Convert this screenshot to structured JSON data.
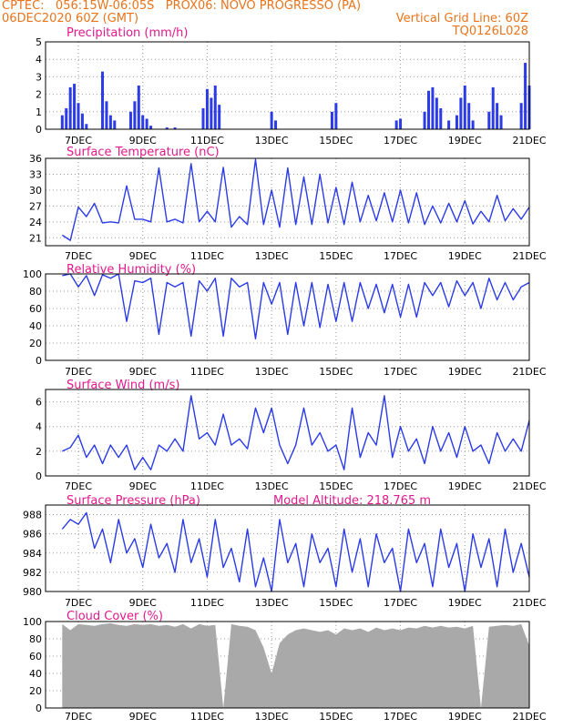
{
  "header": {
    "line1_left": "CPTEC:   056:15W-06:05S   PROX06: NOVO PROGRESSO (PA)",
    "line2_left": "06DEC2020 60Z (GMT)",
    "line2_right": "Vertical Grid Line: 60Z",
    "line3_right": "TQ0126L028"
  },
  "colors": {
    "header_text": "#e8741c",
    "title_text": "#e0198c",
    "series_line": "#2b3be8",
    "wind_arrow": "#000000",
    "cloud_fill": "#a9a9a9",
    "grid": "#9a9a9a"
  },
  "x_axis": {
    "start": "06DEC2020 12Z",
    "end": "21DEC2020 00Z",
    "ticks": [
      "7DEC",
      "9DEC",
      "11DEC",
      "13DEC",
      "15DEC",
      "17DEC",
      "19DEC",
      "21DEC"
    ]
  },
  "chart_data": [
    {
      "type": "bar",
      "title": "Precipitation (mm/h)",
      "ylim": [
        0,
        5
      ],
      "yticks": [
        "0",
        "1",
        "2",
        "3",
        "4",
        "5"
      ],
      "grid": true,
      "x": [
        "06DEC 12Z",
        "06DEC 15Z",
        "06DEC 18Z",
        "06DEC 21Z",
        "07DEC 00Z",
        "07DEC 03Z",
        "07DEC 06Z",
        "07DEC 18Z",
        "07DEC 21Z",
        "08DEC 00Z",
        "08DEC 03Z",
        "08DEC 15Z",
        "08DEC 18Z",
        "08DEC 21Z",
        "09DEC 00Z",
        "09DEC 03Z",
        "09DEC 06Z",
        "09DEC 18Z",
        "10DEC 00Z",
        "10DEC 21Z",
        "11DEC 00Z",
        "11DEC 03Z",
        "11DEC 06Z",
        "11DEC 09Z",
        "13DEC 00Z",
        "13DEC 03Z",
        "14DEC 21Z",
        "15DEC 00Z",
        "16DEC 21Z",
        "17DEC 00Z",
        "17DEC 18Z",
        "17DEC 21Z",
        "18DEC 00Z",
        "18DEC 03Z",
        "18DEC 06Z",
        "18DEC 12Z",
        "18DEC 18Z",
        "18DEC 21Z",
        "19DEC 00Z",
        "19DEC 03Z",
        "19DEC 06Z",
        "19DEC 18Z",
        "19DEC 21Z",
        "20DEC 00Z",
        "20DEC 03Z",
        "20DEC 18Z",
        "20DEC 21Z",
        "21DEC 00Z"
      ],
      "values": [
        0.8,
        1.2,
        2.4,
        2.6,
        1.5,
        0.9,
        0.3,
        3.3,
        1.6,
        0.8,
        0.5,
        1.0,
        1.6,
        2.5,
        0.8,
        0.6,
        0.2,
        0.1,
        0.1,
        1.2,
        2.3,
        1.8,
        2.5,
        1.4,
        1.0,
        0.5,
        1.0,
        1.5,
        0.5,
        0.6,
        1.0,
        2.2,
        2.4,
        1.8,
        1.2,
        0.5,
        0.8,
        1.8,
        2.5,
        1.5,
        0.5,
        1.0,
        2.4,
        1.5,
        0.8,
        1.5,
        3.8,
        2.5
      ]
    },
    {
      "type": "line",
      "title": "Surface Temperature (nC)",
      "ylim": [
        19.5,
        36
      ],
      "yticks": [
        "21",
        "24",
        "27",
        "30",
        "33",
        "36"
      ],
      "grid": true,
      "x": [
        "06DEC 12Z",
        "06DEC 18Z",
        "07DEC 00Z",
        "07DEC 06Z",
        "07DEC 12Z",
        "07DEC 18Z",
        "08DEC 00Z",
        "08DEC 06Z",
        "08DEC 12Z",
        "08DEC 18Z",
        "09DEC 00Z",
        "09DEC 06Z",
        "09DEC 12Z",
        "09DEC 18Z",
        "10DEC 00Z",
        "10DEC 06Z",
        "10DEC 12Z",
        "10DEC 18Z",
        "11DEC 00Z",
        "11DEC 06Z",
        "11DEC 12Z",
        "11DEC 18Z",
        "12DEC 00Z",
        "12DEC 06Z",
        "12DEC 12Z",
        "12DEC 18Z",
        "13DEC 00Z",
        "13DEC 06Z",
        "13DEC 12Z",
        "13DEC 18Z",
        "14DEC 00Z",
        "14DEC 06Z",
        "14DEC 12Z",
        "14DEC 18Z",
        "15DEC 00Z",
        "15DEC 06Z",
        "15DEC 12Z",
        "15DEC 18Z",
        "16DEC 00Z",
        "16DEC 06Z",
        "16DEC 12Z",
        "16DEC 18Z",
        "17DEC 00Z",
        "17DEC 06Z",
        "17DEC 12Z",
        "17DEC 18Z",
        "18DEC 00Z",
        "18DEC 06Z",
        "18DEC 12Z",
        "18DEC 18Z",
        "19DEC 00Z",
        "19DEC 06Z",
        "19DEC 12Z",
        "19DEC 18Z",
        "20DEC 00Z",
        "20DEC 06Z",
        "20DEC 12Z",
        "20DEC 18Z",
        "21DEC 00Z"
      ],
      "values": [
        21.5,
        20.5,
        26.8,
        25.0,
        27.5,
        23.8,
        24.0,
        23.8,
        30.8,
        24.5,
        24.5,
        24.0,
        34.2,
        24.0,
        24.5,
        23.8,
        35.0,
        24.0,
        26.0,
        24.0,
        34.3,
        23.0,
        25.0,
        23.5,
        35.8,
        23.5,
        30.0,
        23.0,
        34.2,
        23.5,
        32.5,
        23.5,
        33.0,
        23.8,
        30.5,
        23.5,
        31.5,
        24.0,
        29.0,
        24.2,
        29.5,
        24.0,
        30.0,
        23.8,
        29.5,
        23.5,
        27.0,
        23.8,
        27.5,
        24.0,
        28.0,
        23.6,
        26.0,
        24.0,
        29.0,
        24.2,
        26.5,
        24.5,
        26.8
      ]
    },
    {
      "type": "line",
      "title": "Relative Humidity (%)",
      "ylim": [
        0,
        100
      ],
      "yticks": [
        "0",
        "20",
        "40",
        "60",
        "80",
        "100"
      ],
      "grid": true,
      "x": [
        "06DEC 12Z",
        "06DEC 18Z",
        "07DEC 00Z",
        "07DEC 06Z",
        "07DEC 12Z",
        "07DEC 18Z",
        "08DEC 00Z",
        "08DEC 06Z",
        "08DEC 12Z",
        "08DEC 18Z",
        "09DEC 00Z",
        "09DEC 06Z",
        "09DEC 12Z",
        "09DEC 18Z",
        "10DEC 00Z",
        "10DEC 06Z",
        "10DEC 12Z",
        "10DEC 18Z",
        "11DEC 00Z",
        "11DEC 06Z",
        "11DEC 12Z",
        "11DEC 18Z",
        "12DEC 00Z",
        "12DEC 06Z",
        "12DEC 12Z",
        "12DEC 18Z",
        "13DEC 00Z",
        "13DEC 06Z",
        "13DEC 12Z",
        "13DEC 18Z",
        "14DEC 00Z",
        "14DEC 06Z",
        "14DEC 12Z",
        "14DEC 18Z",
        "15DEC 00Z",
        "15DEC 06Z",
        "15DEC 12Z",
        "15DEC 18Z",
        "16DEC 00Z",
        "16DEC 06Z",
        "16DEC 12Z",
        "16DEC 18Z",
        "17DEC 00Z",
        "17DEC 06Z",
        "17DEC 12Z",
        "17DEC 18Z",
        "18DEC 00Z",
        "18DEC 06Z",
        "18DEC 12Z",
        "18DEC 18Z",
        "19DEC 00Z",
        "19DEC 06Z",
        "19DEC 12Z",
        "19DEC 18Z",
        "20DEC 00Z",
        "20DEC 06Z",
        "20DEC 12Z",
        "20DEC 18Z",
        "21DEC 00Z"
      ],
      "values": [
        98,
        100,
        85,
        98,
        75,
        99,
        95,
        100,
        45,
        92,
        90,
        95,
        30,
        90,
        85,
        90,
        28,
        92,
        80,
        95,
        28,
        95,
        85,
        90,
        25,
        90,
        65,
        90,
        30,
        90,
        40,
        90,
        38,
        88,
        45,
        90,
        45,
        90,
        60,
        88,
        55,
        88,
        50,
        88,
        50,
        90,
        75,
        90,
        62,
        92,
        75,
        90,
        60,
        95,
        70,
        90,
        70,
        85,
        90
      ]
    },
    {
      "type": "line",
      "title": "Surface Wind (m/s)",
      "ylim": [
        0,
        7
      ],
      "yticks": [
        "0",
        "2",
        "4",
        "6"
      ],
      "grid": true,
      "x": [
        "06DEC 12Z",
        "06DEC 18Z",
        "07DEC 00Z",
        "07DEC 06Z",
        "07DEC 12Z",
        "07DEC 18Z",
        "08DEC 00Z",
        "08DEC 06Z",
        "08DEC 12Z",
        "08DEC 18Z",
        "09DEC 00Z",
        "09DEC 06Z",
        "09DEC 12Z",
        "09DEC 18Z",
        "10DEC 00Z",
        "10DEC 06Z",
        "10DEC 12Z",
        "10DEC 18Z",
        "11DEC 00Z",
        "11DEC 06Z",
        "11DEC 12Z",
        "11DEC 18Z",
        "12DEC 00Z",
        "12DEC 06Z",
        "12DEC 12Z",
        "12DEC 18Z",
        "13DEC 00Z",
        "13DEC 06Z",
        "13DEC 12Z",
        "13DEC 18Z",
        "14DEC 00Z",
        "14DEC 06Z",
        "14DEC 12Z",
        "14DEC 18Z",
        "15DEC 00Z",
        "15DEC 06Z",
        "15DEC 12Z",
        "15DEC 18Z",
        "16DEC 00Z",
        "16DEC 06Z",
        "16DEC 12Z",
        "16DEC 18Z",
        "17DEC 00Z",
        "17DEC 06Z",
        "17DEC 12Z",
        "17DEC 18Z",
        "18DEC 00Z",
        "18DEC 06Z",
        "18DEC 12Z",
        "18DEC 18Z",
        "19DEC 00Z",
        "19DEC 06Z",
        "19DEC 12Z",
        "19DEC 18Z",
        "20DEC 00Z",
        "20DEC 06Z",
        "20DEC 12Z",
        "20DEC 18Z",
        "21DEC 00Z"
      ],
      "values": [
        2.0,
        2.3,
        3.3,
        1.5,
        2.5,
        1.0,
        2.5,
        1.5,
        2.5,
        0.5,
        1.5,
        0.5,
        2.5,
        2.0,
        3.0,
        2.0,
        6.5,
        3.0,
        3.5,
        2.5,
        5.0,
        2.5,
        3.0,
        2.2,
        5.5,
        3.5,
        5.5,
        2.5,
        1.0,
        2.5,
        5.5,
        2.5,
        3.5,
        2.0,
        2.5,
        0.5,
        5.5,
        1.5,
        3.5,
        2.5,
        6.5,
        1.5,
        4.0,
        2.0,
        3.0,
        1.0,
        4.0,
        2.0,
        3.5,
        1.5,
        4.0,
        2.0,
        2.5,
        1.0,
        3.5,
        2.0,
        3.0,
        2.0,
        4.5
      ]
    },
    {
      "type": "line",
      "title": "Surface Pressure (hPa)",
      "annotation": "Model Altitude: 218.765 m",
      "ylim": [
        980,
        989
      ],
      "yticks": [
        "980",
        "982",
        "984",
        "986",
        "988"
      ],
      "grid": true,
      "x": [
        "06DEC 12Z",
        "06DEC 18Z",
        "07DEC 00Z",
        "07DEC 06Z",
        "07DEC 12Z",
        "07DEC 18Z",
        "08DEC 00Z",
        "08DEC 06Z",
        "08DEC 12Z",
        "08DEC 18Z",
        "09DEC 00Z",
        "09DEC 06Z",
        "09DEC 12Z",
        "09DEC 18Z",
        "10DEC 00Z",
        "10DEC 06Z",
        "10DEC 12Z",
        "10DEC 18Z",
        "11DEC 00Z",
        "11DEC 06Z",
        "11DEC 12Z",
        "11DEC 18Z",
        "12DEC 00Z",
        "12DEC 06Z",
        "12DEC 12Z",
        "12DEC 18Z",
        "13DEC 00Z",
        "13DEC 06Z",
        "13DEC 12Z",
        "13DEC 18Z",
        "14DEC 00Z",
        "14DEC 06Z",
        "14DEC 12Z",
        "14DEC 18Z",
        "15DEC 00Z",
        "15DEC 06Z",
        "15DEC 12Z",
        "15DEC 18Z",
        "16DEC 00Z",
        "16DEC 06Z",
        "16DEC 12Z",
        "16DEC 18Z",
        "17DEC 00Z",
        "17DEC 06Z",
        "17DEC 12Z",
        "17DEC 18Z",
        "18DEC 00Z",
        "18DEC 06Z",
        "18DEC 12Z",
        "18DEC 18Z",
        "19DEC 00Z",
        "19DEC 06Z",
        "19DEC 12Z",
        "19DEC 18Z",
        "20DEC 00Z",
        "20DEC 06Z",
        "20DEC 12Z",
        "20DEC 18Z",
        "21DEC 00Z"
      ],
      "values": [
        986.5,
        987.5,
        987.0,
        988.2,
        984.5,
        986.5,
        983.0,
        987.5,
        984.0,
        985.5,
        982.5,
        987.0,
        983.5,
        985.0,
        982.0,
        987.5,
        983.0,
        985.5,
        981.5,
        987.5,
        982.5,
        984.5,
        981.0,
        986.5,
        980.5,
        983.5,
        980.0,
        987.5,
        983.0,
        985.0,
        980.5,
        986.0,
        983.0,
        984.5,
        980.5,
        986.5,
        982.0,
        985.5,
        980.5,
        986.0,
        983.0,
        984.5,
        980.0,
        986.5,
        983.0,
        985.0,
        980.5,
        986.5,
        982.5,
        985.0,
        980.0,
        986.0,
        982.5,
        985.5,
        980.5,
        986.5,
        982.0,
        985.0,
        981.5
      ]
    },
    {
      "type": "area",
      "title": "Cloud Cover (%)",
      "ylim": [
        0,
        100
      ],
      "yticks": [
        "0",
        "20",
        "40",
        "60",
        "80",
        "100"
      ],
      "grid": true,
      "x": [
        "06DEC 12Z",
        "06DEC 18Z",
        "07DEC 00Z",
        "07DEC 06Z",
        "07DEC 12Z",
        "07DEC 18Z",
        "08DEC 00Z",
        "08DEC 06Z",
        "08DEC 12Z",
        "08DEC 18Z",
        "09DEC 00Z",
        "09DEC 06Z",
        "09DEC 12Z",
        "09DEC 18Z",
        "10DEC 00Z",
        "10DEC 06Z",
        "10DEC 12Z",
        "10DEC 18Z",
        "11DEC 00Z",
        "11DEC 06Z",
        "11DEC 12Z",
        "11DEC 18Z",
        "12DEC 00Z",
        "12DEC 06Z",
        "12DEC 12Z",
        "12DEC 18Z",
        "13DEC 00Z",
        "13DEC 06Z",
        "13DEC 12Z",
        "13DEC 18Z",
        "14DEC 00Z",
        "14DEC 06Z",
        "14DEC 12Z",
        "14DEC 18Z",
        "15DEC 00Z",
        "15DEC 06Z",
        "15DEC 12Z",
        "15DEC 18Z",
        "16DEC 00Z",
        "16DEC 06Z",
        "16DEC 12Z",
        "16DEC 18Z",
        "17DEC 00Z",
        "17DEC 06Z",
        "17DEC 12Z",
        "17DEC 18Z",
        "18DEC 00Z",
        "18DEC 06Z",
        "18DEC 12Z",
        "18DEC 18Z",
        "19DEC 00Z",
        "19DEC 06Z",
        "19DEC 12Z",
        "19DEC 18Z",
        "20DEC 00Z",
        "20DEC 06Z",
        "20DEC 12Z",
        "20DEC 18Z",
        "21DEC 00Z"
      ],
      "values": [
        97,
        90,
        97,
        96,
        95,
        97,
        98,
        96,
        95,
        97,
        96,
        97,
        95,
        96,
        94,
        97,
        92,
        97,
        95,
        96,
        0,
        97,
        95,
        94,
        90,
        70,
        40,
        75,
        85,
        90,
        92,
        90,
        88,
        90,
        85,
        92,
        90,
        92,
        88,
        93,
        90,
        92,
        90,
        93,
        92,
        95,
        93,
        95,
        93,
        94,
        92,
        95,
        0,
        94,
        95,
        96,
        95,
        97,
        72
      ]
    }
  ]
}
